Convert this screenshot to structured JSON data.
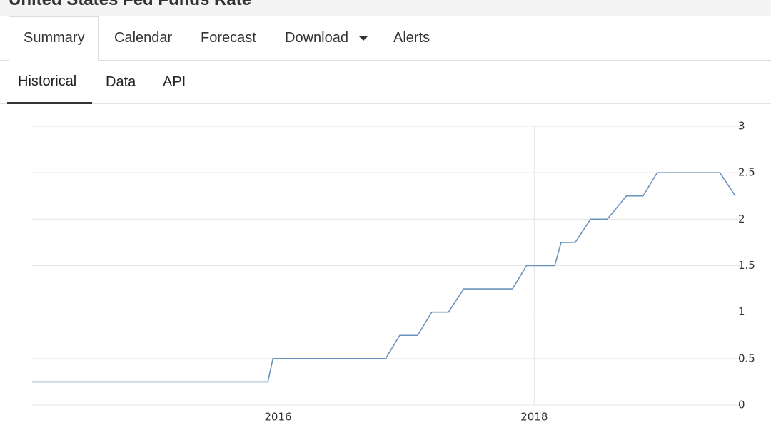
{
  "header": {
    "title": "United States Fed Funds Rate"
  },
  "tabs": [
    "Summary",
    "Calendar",
    "Forecast",
    "Download",
    "Alerts"
  ],
  "subtabs": [
    "Historical",
    "Data",
    "API"
  ],
  "chart_data": {
    "type": "line",
    "color": "#6a93c0",
    "x": [
      2014.08,
      2015.92,
      2015.96,
      2016.84,
      2016.95,
      2017.09,
      2017.2,
      2017.33,
      2017.45,
      2017.83,
      2017.94,
      2018.16,
      2018.21,
      2018.32,
      2018.44,
      2018.57,
      2018.72,
      2018.85,
      2018.96,
      2019.45,
      2019.57
    ],
    "values": [
      0.25,
      0.25,
      0.5,
      0.5,
      0.75,
      0.75,
      1,
      1,
      1.25,
      1.25,
      1.5,
      1.5,
      1.75,
      1.75,
      2,
      2,
      2.25,
      2.25,
      2.5,
      2.5,
      2.25
    ],
    "xlim": [
      2014.08,
      2019.57
    ],
    "xticks": [
      2016,
      2018
    ],
    "ylim": [
      0,
      3
    ],
    "yticks": [
      0,
      0.5,
      1,
      1.5,
      2,
      2.5,
      3
    ],
    "grid": true
  }
}
